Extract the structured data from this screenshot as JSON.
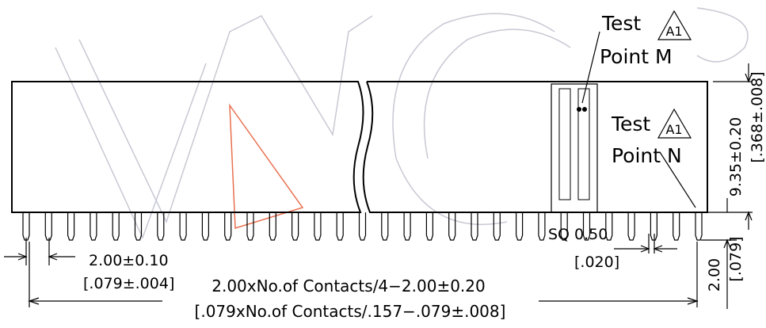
{
  "callouts": {
    "point_m": {
      "label": "Test",
      "badge": "A1",
      "name": "Point M"
    },
    "point_n": {
      "label": "Test",
      "badge": "A1",
      "name": "Point N"
    }
  },
  "dimensions": {
    "height": {
      "metric": "9.35±0.20",
      "imperial": "[.368±.008]"
    },
    "pitch": {
      "metric": "2.00±0.10",
      "imperial": "[.079±.004]"
    },
    "pin_size": {
      "metric": "SQ 0.50",
      "imperial": "[.020]"
    },
    "pin_length": {
      "metric": "2.00",
      "imperial": "[.079]"
    },
    "overall_length": {
      "metric": "2.00xNo.of Contacts/4−2.00±0.20",
      "imperial": "[.079xNo.of Contacts/.157−.079±.008]"
    }
  }
}
